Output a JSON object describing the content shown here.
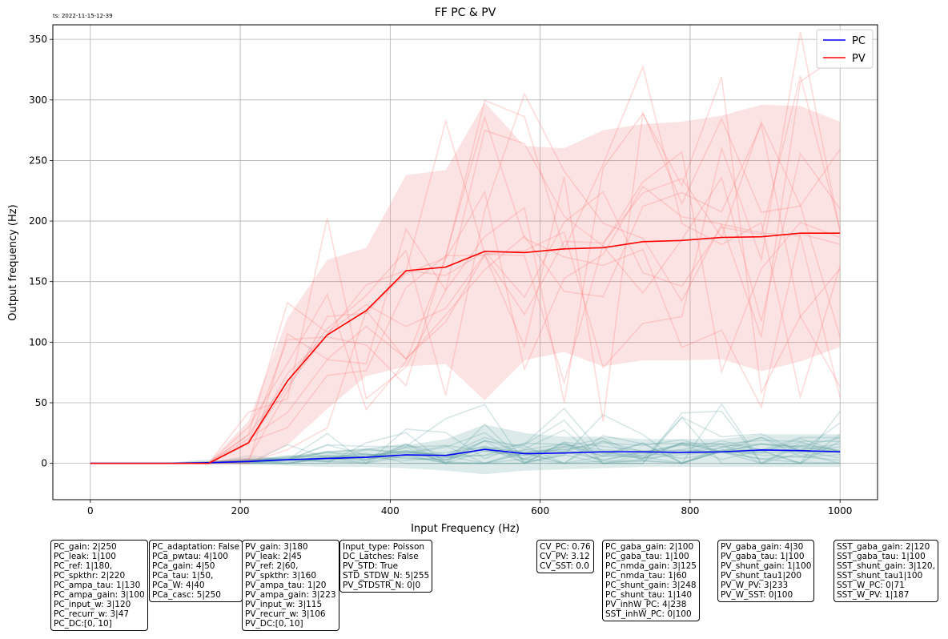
{
  "timestamp": "ts: 2022-11-15-12-39",
  "chart_data": {
    "type": "line",
    "title": "FF PC & PV",
    "xlabel": "Input Frequency (Hz)",
    "ylabel": "Output frequency (Hz)",
    "xlim": [
      -50,
      1050
    ],
    "ylim": [
      -30,
      362
    ],
    "grid": true,
    "legend_position": "top-right",
    "x_ticks": [
      0,
      200,
      400,
      600,
      800,
      1000
    ],
    "y_ticks": [
      0,
      50,
      100,
      150,
      200,
      250,
      300,
      350
    ],
    "x": [
      0,
      53,
      105,
      158,
      211,
      263,
      316,
      368,
      421,
      474,
      526,
      579,
      632,
      684,
      737,
      789,
      842,
      895,
      947,
      1000
    ],
    "series": [
      {
        "name": "PC",
        "color": "#0000ff",
        "values": [
          0,
          0,
          0,
          0.5,
          1.5,
          3,
          4,
          5,
          7,
          6.5,
          11.5,
          8,
          8.5,
          9.5,
          9.5,
          9,
          9.5,
          11,
          10.5,
          9.5
        ],
        "band_upper": [
          0,
          0,
          0,
          1.5,
          3,
          6,
          9,
          12,
          15,
          20,
          32,
          25,
          22,
          22,
          20,
          20,
          20,
          24,
          24,
          24
        ],
        "band_lower": [
          0,
          0,
          0,
          -0.5,
          -1,
          -2,
          -3,
          -3,
          -4,
          -6,
          -9,
          -6,
          -5,
          -4,
          -3,
          -3,
          -3,
          -3,
          -3,
          -3
        ]
      },
      {
        "name": "PV",
        "color": "#ff0000",
        "values": [
          0,
          0,
          0,
          0,
          17,
          68,
          106,
          126,
          159,
          162,
          175,
          174,
          177,
          178,
          183,
          184,
          186.5,
          187,
          190,
          190
        ],
        "band_upper": [
          0,
          0,
          0,
          1,
          35,
          120,
          168,
          178,
          238,
          242,
          298,
          262,
          260,
          275,
          280,
          282,
          287,
          296,
          295,
          282
        ],
        "band_lower": [
          0,
          0,
          0,
          -1,
          -1,
          15,
          45,
          72,
          80,
          82,
          52,
          85,
          92,
          80,
          85,
          85,
          86,
          76,
          84,
          96
        ]
      }
    ]
  },
  "param_boxes": [
    {
      "lines": [
        "PC_gain: 2|250",
        "PC_leak: 1|100",
        "PC_ref: 1|180,",
        "PC_spkthr: 2|220",
        "PC_ampa_tau: 1|130",
        "PC_ampa_gain: 3|100",
        "PC_input_w: 3|120",
        "PC_recurr_w: 3|47",
        "PC_DC:[0, 10]"
      ]
    },
    {
      "lines": [
        "PC_adaptation: False",
        "PCa_pwtau: 4|100",
        "PCa_gain: 4|50",
        "PCa_tau: 1|50,",
        "PCa_W: 4|40",
        "PCa_casc: 5|250"
      ]
    },
    {
      "lines": [
        "PV_gain: 3|180",
        "PV_leak: 2|45",
        "PV_ref: 2|60,",
        "PV_spkthr: 3|160",
        "PV_ampa_tau: 1|20",
        "PV_ampa_gain: 3|223",
        "PV_input_w: 3|115",
        "PV_recurr_w: 3|106",
        "PV_DC:[0, 10]"
      ]
    },
    {
      "lines": [
        "Input_type: Poisson",
        "DC_Latches: False",
        "PV_STD: True",
        "STD_STDW_N: 5|255",
        "PV_STDSTR_N: 0|0"
      ]
    },
    {
      "lines": [
        "CV_PC: 0.76",
        "CV_PV: 3.12",
        "CV_SST: 0.0"
      ]
    },
    {
      "lines": [
        "PC_gaba_gain: 2|100",
        "PC_gaba_tau: 1|100",
        "PC_nmda_gain: 3|125",
        "PC_nmda_tau: 1|60",
        "PC_shunt_gain: 3|248",
        "PC_shunt_tau: 1|140",
        "PV_inhW_PC: 4|238",
        "SST_inhW_PC: 0|100"
      ]
    },
    {
      "lines": [
        "PV_gaba_gain: 4|30",
        "PV_gaba_tau: 1|100",
        "PV_shunt_gain: 1|100",
        "PV_shunt_tau1|200",
        "PV_W_PV: 3|233",
        "PV_W_SST: 0|100"
      ]
    },
    {
      "lines": [
        "SST_gaba_gain: 2|120",
        "SST_gaba_tau: 1|100",
        "SST_shunt_gain: 3|120,",
        "SST_shunt_tau1|100",
        "SST_W_PC: 0|71",
        "SST_W_PV: 1|187"
      ]
    }
  ]
}
